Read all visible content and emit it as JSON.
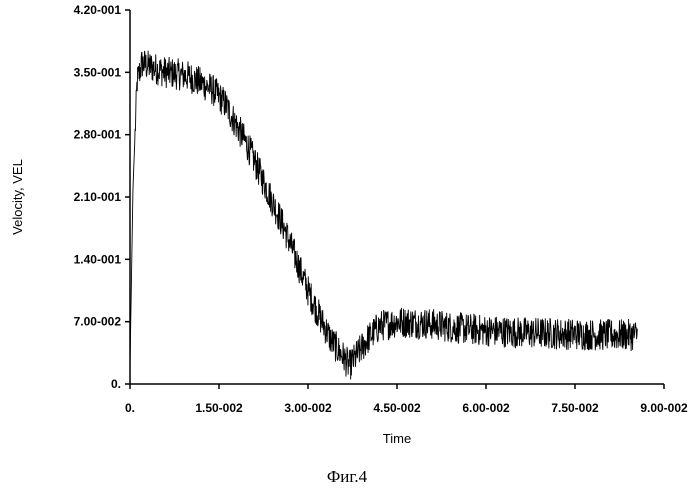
{
  "chart_data": {
    "type": "line",
    "title": "",
    "xlabel": "Time",
    "ylabel": "Velocity, VEL",
    "caption": "Фиг.4",
    "xlim": [
      0,
      0.09
    ],
    "ylim": [
      0,
      0.42
    ],
    "x_ticks": [
      {
        "value": 0,
        "label": "0."
      },
      {
        "value": 0.015,
        "label": "1.50-002"
      },
      {
        "value": 0.03,
        "label": "3.00-002"
      },
      {
        "value": 0.045,
        "label": "4.50-002"
      },
      {
        "value": 0.06,
        "label": "6.00-002"
      },
      {
        "value": 0.075,
        "label": "7.50-002"
      },
      {
        "value": 0.09,
        "label": "9.00-002"
      }
    ],
    "y_ticks": [
      {
        "value": 0,
        "label": "0."
      },
      {
        "value": 0.07,
        "label": "7.00-002"
      },
      {
        "value": 0.14,
        "label": "1.40-001"
      },
      {
        "value": 0.21,
        "label": "2.10-001"
      },
      {
        "value": 0.28,
        "label": "2.80-001"
      },
      {
        "value": 0.35,
        "label": "3.50-001"
      },
      {
        "value": 0.42,
        "label": "4.20-001"
      }
    ],
    "grid": false,
    "series": [
      {
        "color": "#000000",
        "noise_amplitude": 0.018,
        "points": [
          [
            0.0,
            0.02
          ],
          [
            0.0005,
            0.22
          ],
          [
            0.0012,
            0.34
          ],
          [
            0.002,
            0.36
          ],
          [
            0.004,
            0.355
          ],
          [
            0.006,
            0.35
          ],
          [
            0.008,
            0.348
          ],
          [
            0.01,
            0.345
          ],
          [
            0.012,
            0.338
          ],
          [
            0.014,
            0.33
          ],
          [
            0.016,
            0.315
          ],
          [
            0.018,
            0.29
          ],
          [
            0.02,
            0.265
          ],
          [
            0.022,
            0.235
          ],
          [
            0.024,
            0.205
          ],
          [
            0.026,
            0.175
          ],
          [
            0.028,
            0.14
          ],
          [
            0.03,
            0.105
          ],
          [
            0.032,
            0.075
          ],
          [
            0.034,
            0.048
          ],
          [
            0.036,
            0.03
          ],
          [
            0.037,
            0.02
          ],
          [
            0.038,
            0.03
          ],
          [
            0.04,
            0.05
          ],
          [
            0.042,
            0.065
          ],
          [
            0.045,
            0.07
          ],
          [
            0.05,
            0.068
          ],
          [
            0.055,
            0.063
          ],
          [
            0.06,
            0.06
          ],
          [
            0.065,
            0.058
          ],
          [
            0.07,
            0.057
          ],
          [
            0.075,
            0.056
          ],
          [
            0.08,
            0.055
          ],
          [
            0.0855,
            0.055
          ]
        ]
      }
    ]
  }
}
